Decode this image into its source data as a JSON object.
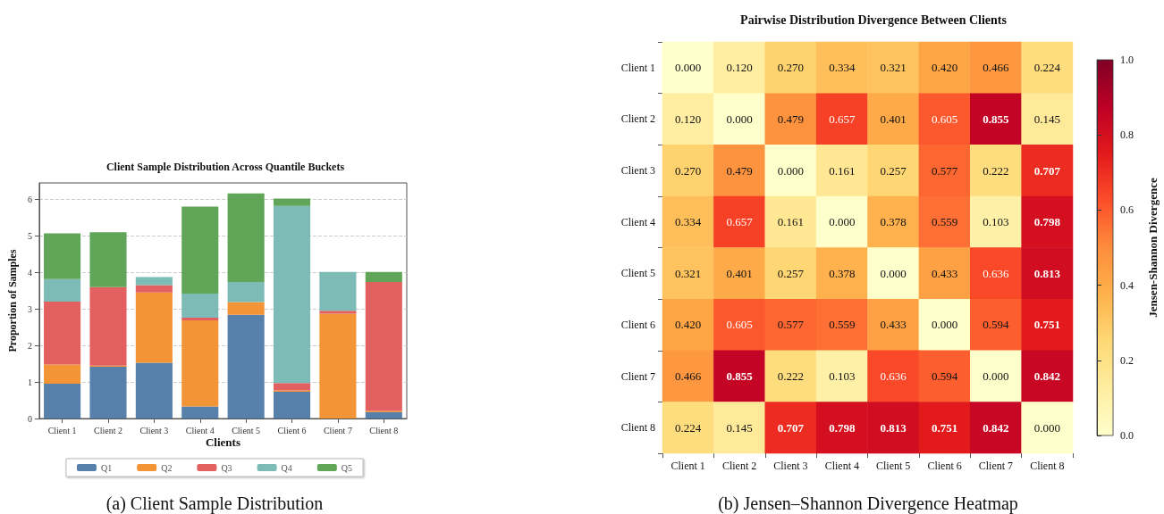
{
  "chart_data": [
    {
      "type": "bar",
      "title": "Client Sample Distribution Across Quantile Buckets",
      "xlabel": "Clients",
      "ylabel": "Proportion of Samples",
      "categories": [
        "Client 1",
        "Client 2",
        "Client 3",
        "Client 4",
        "Client 5",
        "Client 6",
        "Client 7",
        "Client 8"
      ],
      "stacked": true,
      "series": [
        {
          "name": "Q1",
          "color": "#4e79a7",
          "values": [
            0.95,
            1.42,
            1.53,
            0.33,
            2.84,
            0.73,
            0.0,
            0.17
          ]
        },
        {
          "name": "Q2",
          "color": "#f28e2b",
          "values": [
            0.53,
            0.03,
            1.92,
            2.36,
            0.35,
            0.04,
            2.87,
            0.04
          ]
        },
        {
          "name": "Q3",
          "color": "#e15759",
          "values": [
            1.72,
            2.15,
            0.2,
            0.07,
            0.0,
            0.2,
            0.08,
            3.53
          ]
        },
        {
          "name": "Q4",
          "color": "#76b7b2",
          "values": [
            0.62,
            0.0,
            0.22,
            0.66,
            0.55,
            4.85,
            1.06,
            0.0
          ]
        },
        {
          "name": "Q5",
          "color": "#59a14f",
          "values": [
            1.25,
            1.5,
            0.0,
            2.38,
            2.42,
            0.2,
            0.0,
            0.27
          ]
        }
      ],
      "ylim": [
        0,
        6.45
      ],
      "yticks": [
        0,
        1,
        2,
        3,
        4,
        5,
        6
      ],
      "grid": "y",
      "legend": "bottom",
      "annotations": [
        "(a) Client Sample Distribution"
      ]
    },
    {
      "type": "heatmap",
      "title": "Pairwise Distribution Divergence Between Clients",
      "clabel": "Jensen-Shannon Divergence",
      "categories": [
        "Client 1",
        "Client 2",
        "Client 3",
        "Client 4",
        "Client 5",
        "Client 6",
        "Client 7",
        "Client 8"
      ],
      "y_categories": [
        "Client 1",
        "Client 2",
        "Client 3",
        "Client 4",
        "Client 5",
        "Client 6",
        "Client 7",
        "Client 8"
      ],
      "cells": [
        [
          0.0,
          0.12,
          0.27,
          0.334,
          0.321,
          0.42,
          0.466,
          0.224
        ],
        [
          0.12,
          0.0,
          0.479,
          0.657,
          0.401,
          0.605,
          0.855,
          0.145
        ],
        [
          0.27,
          0.479,
          0.0,
          0.161,
          0.257,
          0.577,
          0.222,
          0.707
        ],
        [
          0.334,
          0.657,
          0.161,
          0.0,
          0.378,
          0.559,
          0.103,
          0.798
        ],
        [
          0.321,
          0.401,
          0.257,
          0.378,
          0.0,
          0.433,
          0.636,
          0.813
        ],
        [
          0.42,
          0.605,
          0.577,
          0.559,
          0.433,
          0.0,
          0.594,
          0.751
        ],
        [
          0.466,
          0.855,
          0.222,
          0.103,
          0.636,
          0.594,
          0.0,
          0.842
        ],
        [
          0.224,
          0.145,
          0.707,
          0.798,
          0.813,
          0.751,
          0.842,
          0.0
        ]
      ],
      "cell_labels": [
        [
          "0.000",
          "0.120",
          "0.270",
          "0.334",
          "0.321",
          "0.420",
          "0.466",
          "0.224"
        ],
        [
          "0.120",
          "0.000",
          "0.479",
          "0.657",
          "0.401",
          "0.605",
          "0.855",
          "0.145"
        ],
        [
          "0.270",
          "0.479",
          "0.000",
          "0.161",
          "0.257",
          "0.577",
          "0.222",
          "0.707"
        ],
        [
          "0.334",
          "0.657",
          "0.161",
          "0.000",
          "0.378",
          "0.559",
          "0.103",
          "0.798"
        ],
        [
          "0.321",
          "0.401",
          "0.257",
          "0.378",
          "0.000",
          "0.433",
          "0.636",
          "0.813"
        ],
        [
          "0.420",
          "0.605",
          "0.577",
          "0.559",
          "0.433",
          "0.000",
          "0.594",
          "0.751"
        ],
        [
          "0.466",
          "0.855",
          "0.222",
          "0.103",
          "0.636",
          "0.594",
          "0.000",
          "0.842"
        ],
        [
          "0.224",
          "0.145",
          "0.707",
          "0.798",
          "0.813",
          "0.751",
          "0.842",
          "0.000"
        ]
      ],
      "clim": [
        0,
        1
      ],
      "cticks": [
        {
          "value": 0,
          "label": "0.0"
        },
        {
          "value": 0.2,
          "label": "0.2"
        },
        {
          "value": 0.4,
          "label": "0.4"
        },
        {
          "value": 0.6,
          "label": "0.6"
        },
        {
          "value": 0.8,
          "label": "0.8"
        },
        {
          "value": 1.0,
          "label": "1.0"
        }
      ],
      "annotations": [
        "(b) Jensen–Shannon Divergence Heatmap"
      ]
    }
  ]
}
